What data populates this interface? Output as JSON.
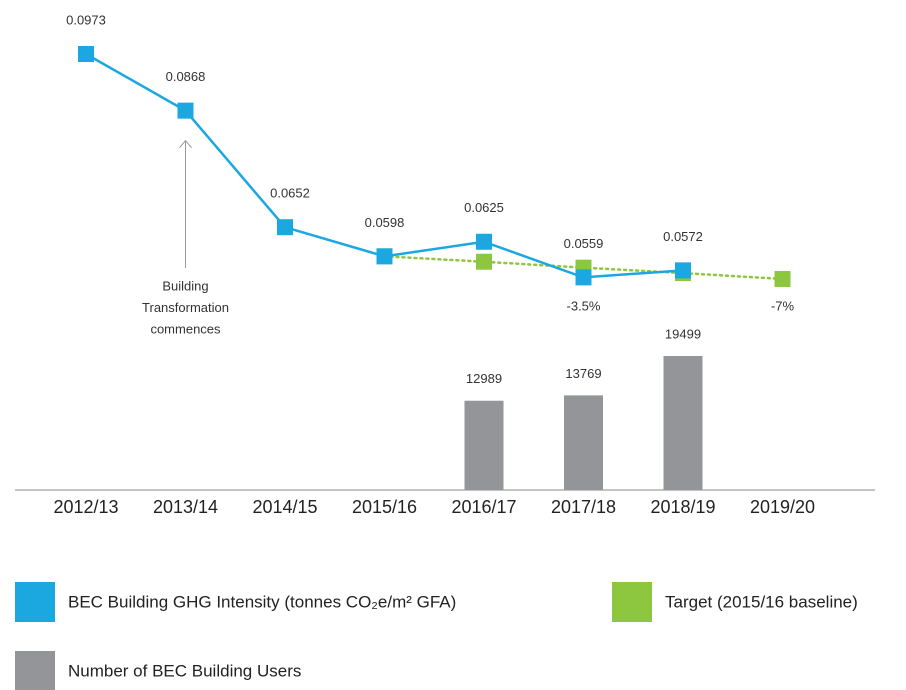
{
  "chart_data": {
    "type": "line",
    "categories": [
      "2012/13",
      "2013/14",
      "2014/15",
      "2015/16",
      "2016/17",
      "2017/18",
      "2018/19",
      "2019/20"
    ],
    "series": [
      {
        "name": "BEC Building GHG Intensity (tonnes CO₂e/m² GFA)",
        "color": "#1ba8e0",
        "values": [
          0.0973,
          0.0868,
          0.0652,
          0.0598,
          0.0625,
          0.0559,
          0.0572,
          null
        ]
      },
      {
        "name": "Target (2015/16 baseline)",
        "color": "#8dc63f",
        "line_style": "dotted",
        "values": [
          null,
          null,
          null,
          0.0598,
          0.0588,
          0.0577,
          0.0567,
          0.0556
        ]
      },
      {
        "name": "Number of BEC Building Users",
        "color": "#939598",
        "type": "bar",
        "values": [
          null,
          null,
          null,
          null,
          12989,
          13769,
          19499,
          null
        ]
      }
    ],
    "annotations": [
      {
        "category": "2013/14",
        "text": [
          "Building",
          "Transformation",
          "commences"
        ]
      },
      {
        "category": "2017/18",
        "text": "-3.5%"
      },
      {
        "category": "2019/20",
        "text": "-7%"
      }
    ]
  }
}
